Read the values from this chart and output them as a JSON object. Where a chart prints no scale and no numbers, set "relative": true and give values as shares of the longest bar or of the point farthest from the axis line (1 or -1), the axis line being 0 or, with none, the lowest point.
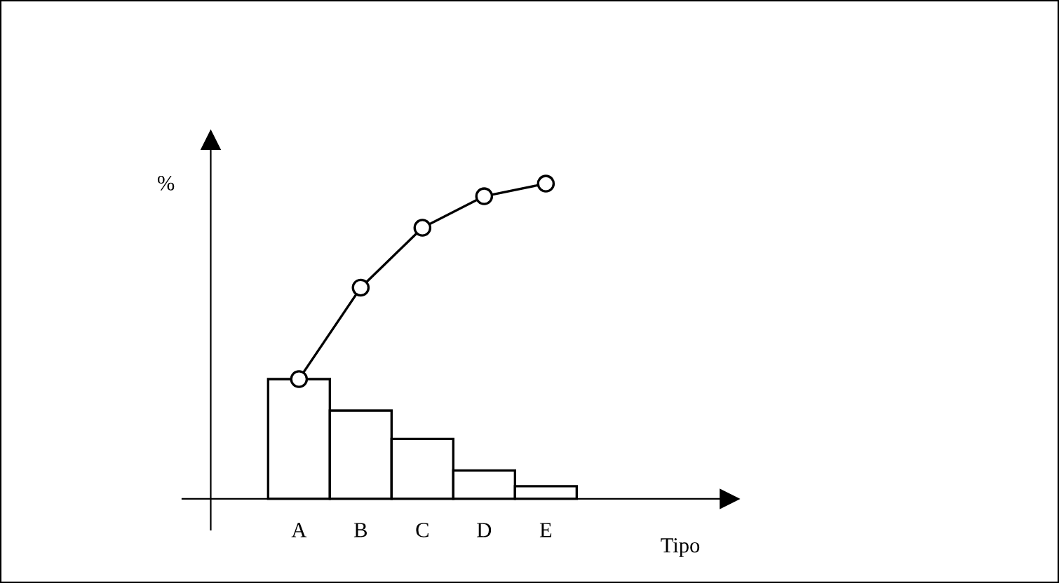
{
  "chart_data": {
    "type": "bar",
    "relative": true,
    "categories": [
      "A",
      "B",
      "C",
      "D",
      "E"
    ],
    "xlabel": "Tipo",
    "ylabel": "%",
    "tick_labels": "x",
    "series": [
      {
        "color": "#ffffff",
        "values": [
          0.38,
          0.28,
          0.19,
          0.09,
          0.04
        ]
      },
      {
        "type": "line",
        "color": "#000000",
        "marker": "circle",
        "line_style": "solid",
        "values": [
          0.38,
          0.67,
          0.86,
          0.96,
          1.0
        ]
      }
    ]
  }
}
